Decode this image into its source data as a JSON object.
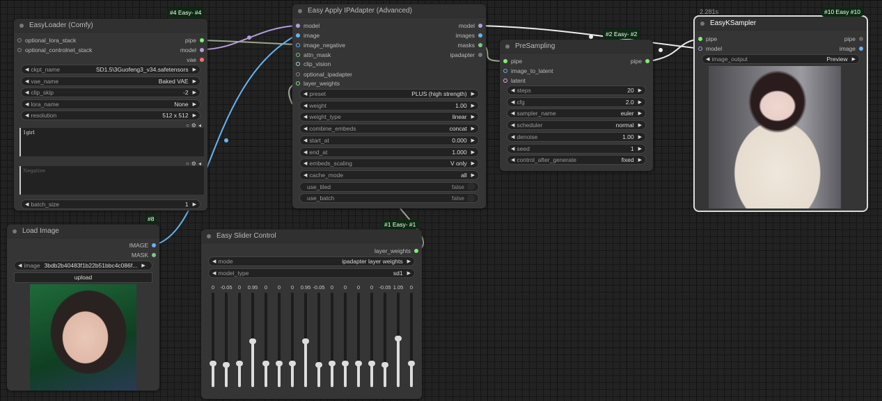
{
  "colors": {
    "pipe": "#7af06f",
    "model": "#b39ddb",
    "vae": "#ff6e6e",
    "image": "#64b5f6",
    "mask": "#81c784",
    "latent": "#ff9cf9",
    "clip_vision": "#a8dadc",
    "gray": "#888888",
    "badge": "#0c2a12"
  },
  "easyloader": {
    "badge": "#4 Easy- #4",
    "title": "EasyLoader (Comfy)",
    "inputs": [
      "optional_lora_stack",
      "optional_controlnet_stack"
    ],
    "outputs": [
      "pipe",
      "model",
      "vae"
    ],
    "widgets": [
      {
        "label": "ckpt_name",
        "value": "SD1.5\\3Guofeng3_v34.safetensors"
      },
      {
        "label": "vae_name",
        "value": "Baked VAE"
      },
      {
        "label": "clip_skip",
        "value": "-2"
      },
      {
        "label": "lora_name",
        "value": "None"
      },
      {
        "label": "resolution",
        "value": "512 x 512"
      }
    ],
    "positive": "1girl",
    "negative_placeholder": "Negative",
    "batch_size": {
      "label": "batch_size",
      "value": "1"
    }
  },
  "loadimage": {
    "badge": "#8",
    "title": "Load Image",
    "outputs": [
      "IMAGE",
      "MASK"
    ],
    "image": {
      "label": "image",
      "value": "3bdb2b40483f1b22b51bbc4c086f..."
    },
    "upload": "upload"
  },
  "ipadapter": {
    "title": "Easy Apply IPAdapter (Advanced)",
    "inputs": [
      "model",
      "image",
      "image_negative",
      "attn_mask",
      "clip_vision",
      "optional_ipadapter",
      "layer_weights"
    ],
    "outputs": [
      "model",
      "images",
      "masks",
      "ipadapter"
    ],
    "widgets": [
      {
        "label": "preset",
        "value": "PLUS (high strength)"
      },
      {
        "label": "weight",
        "value": "1.00"
      },
      {
        "label": "weight_type",
        "value": "linear"
      },
      {
        "label": "combine_embeds",
        "value": "concat"
      },
      {
        "label": "start_at",
        "value": "0.000"
      },
      {
        "label": "end_at",
        "value": "1.000"
      },
      {
        "label": "embeds_scaling",
        "value": "V only"
      },
      {
        "label": "cache_mode",
        "value": "all"
      }
    ],
    "toggles": [
      {
        "label": "use_tiled",
        "value": "false"
      },
      {
        "label": "use_batch",
        "value": "false"
      }
    ]
  },
  "slider": {
    "badge": "#1 Easy- #1",
    "title": "Easy Slider Control",
    "output": "layer_weights",
    "mode": {
      "label": "mode",
      "value": "ipadapter layer weights"
    },
    "model_type": {
      "label": "model_type",
      "value": "sd1"
    },
    "values": [
      "0",
      "-0.05",
      "0",
      "0.95",
      "0",
      "0",
      "0",
      "0.95",
      "-0.05",
      "0",
      "0",
      "0",
      "0",
      "-0.05",
      "1.05",
      "0"
    ]
  },
  "presampling": {
    "badge": "#2 Easy- #2",
    "title": "PreSampling",
    "inputs": [
      "pipe",
      "image_to_latent",
      "latent"
    ],
    "outputs": [
      "pipe"
    ],
    "widgets": [
      {
        "label": "steps",
        "value": "20"
      },
      {
        "label": "cfg",
        "value": "2.0"
      },
      {
        "label": "sampler_name",
        "value": "euler"
      },
      {
        "label": "scheduler",
        "value": "normal"
      },
      {
        "label": "denoise",
        "value": "1.00"
      },
      {
        "label": "seed",
        "value": "1"
      },
      {
        "label": "control_after_generate",
        "value": "fixed"
      }
    ]
  },
  "ksampler": {
    "badge": "#10 Easy #10",
    "timer": "2.281s",
    "title": "EasyKSampler",
    "inputs": [
      "pipe",
      "model"
    ],
    "outputs": [
      "pipe",
      "image"
    ],
    "image_output": {
      "label": "image_output",
      "value": "Preview"
    }
  }
}
